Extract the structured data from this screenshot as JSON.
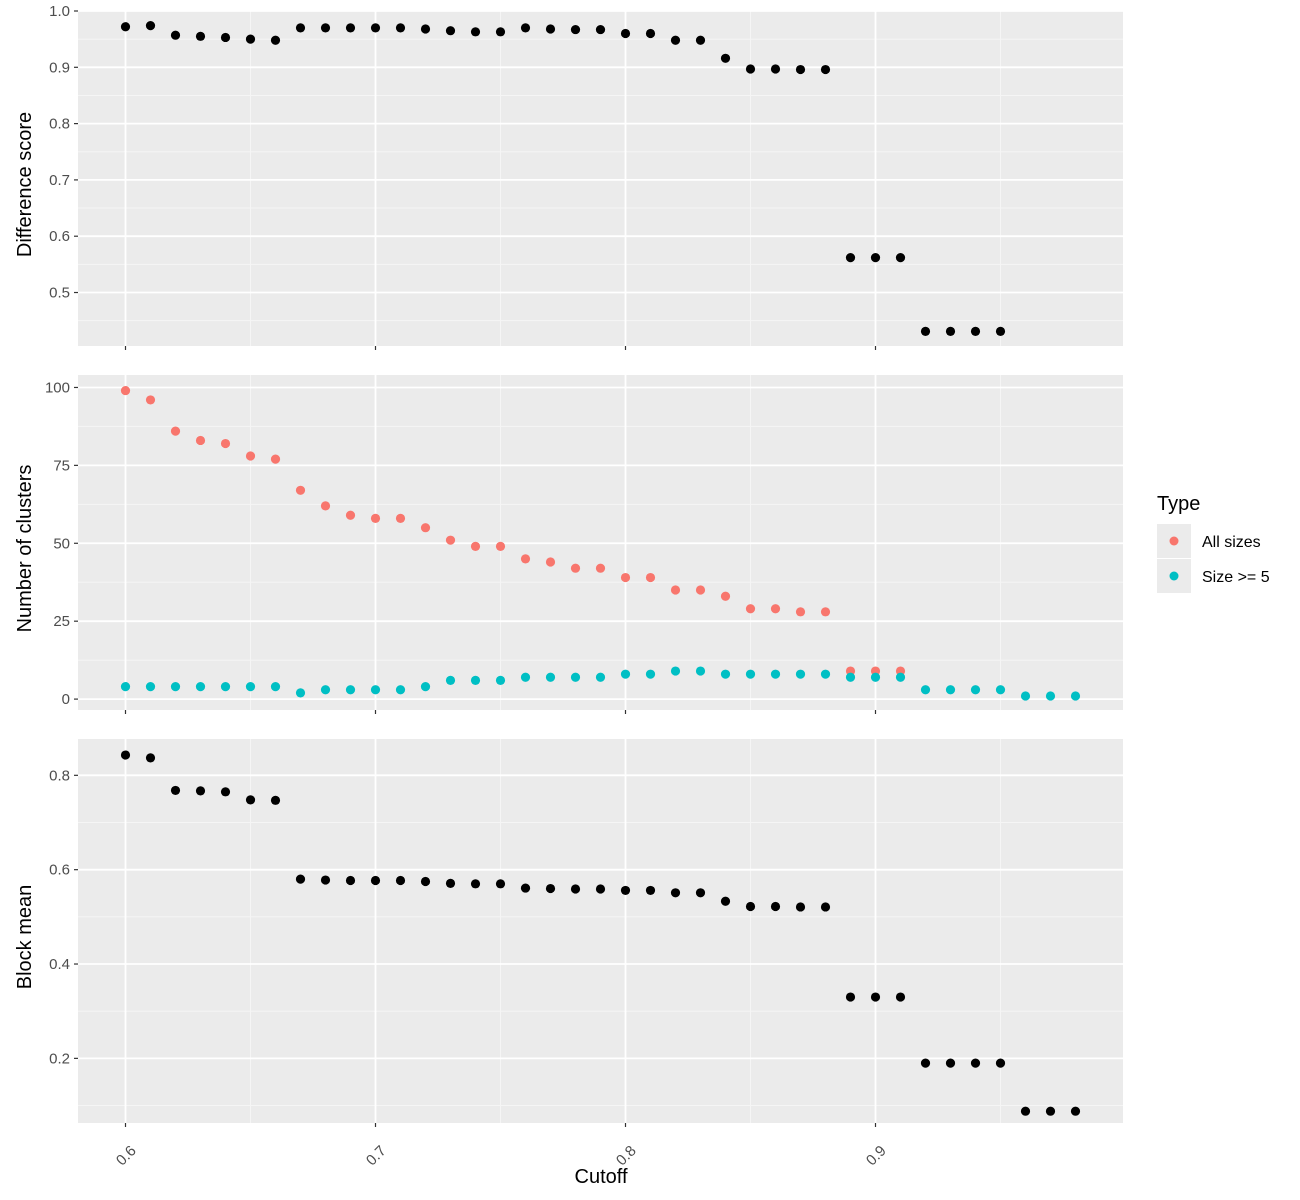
{
  "colors": {
    "panel_bg": "#ebebeb",
    "grid_major": "#ffffff",
    "grid_minor": "#f5f5f5",
    "tick_text": "#4d4d4d",
    "tick_mark": "#333333",
    "point_default": "#000000",
    "all_sizes": "#f8766d",
    "size_ge_5": "#00bfc4"
  },
  "chart_data": {
    "type": "scatter",
    "layout": "three vertically stacked panels sharing the x axis",
    "x_axis": {
      "label": "Cutoff",
      "ticks": [
        0.6,
        0.7,
        0.8,
        0.9
      ],
      "tick_labels": [
        "0.6",
        "0.7",
        "0.8",
        "0.9"
      ],
      "tick_label_rotation": "45 degrees",
      "range": [
        0.581,
        0.999
      ]
    },
    "legend": {
      "title": "Type",
      "position": "right",
      "entries": [
        {
          "label": "All sizes",
          "color": "#f8766d"
        },
        {
          "label": "Size >= 5",
          "color": "#00bfc4"
        }
      ]
    },
    "panels": [
      {
        "ylabel": "Difference score",
        "ylim": [
          0.405,
          1.0
        ],
        "yticks": [
          0.5,
          0.6,
          0.7,
          0.8,
          0.9,
          1.0
        ],
        "ytick_labels": [
          "0.5",
          "0.6",
          "0.7",
          "0.8",
          "0.9",
          "1.0"
        ],
        "series": [
          {
            "color": "#000000",
            "x": [
              0.6,
              0.61,
              0.62,
              0.63,
              0.64,
              0.65,
              0.66,
              0.67,
              0.68,
              0.69,
              0.7,
              0.71,
              0.72,
              0.73,
              0.74,
              0.75,
              0.76,
              0.77,
              0.78,
              0.79,
              0.8,
              0.81,
              0.82,
              0.83,
              0.84,
              0.85,
              0.86,
              0.87,
              0.88,
              0.89,
              0.9,
              0.91,
              0.92,
              0.93,
              0.94,
              0.95
            ],
            "y": [
              0.972,
              0.974,
              0.957,
              0.955,
              0.953,
              0.95,
              0.948,
              0.97,
              0.97,
              0.97,
              0.97,
              0.97,
              0.968,
              0.965,
              0.963,
              0.963,
              0.97,
              0.968,
              0.967,
              0.967,
              0.96,
              0.96,
              0.948,
              0.948,
              0.916,
              0.897,
              0.897,
              0.896,
              0.896,
              0.562,
              0.562,
              0.562,
              0.431,
              0.431,
              0.431,
              0.431
            ]
          }
        ]
      },
      {
        "ylabel": "Number of clusters",
        "ylim": [
          -3.5,
          104
        ],
        "yticks": [
          0,
          25,
          50,
          75,
          100
        ],
        "ytick_labels": [
          "0",
          "25",
          "50",
          "75",
          "100"
        ],
        "series": [
          {
            "name": "All sizes",
            "color": "#f8766d",
            "x": [
              0.6,
              0.61,
              0.62,
              0.63,
              0.64,
              0.65,
              0.66,
              0.67,
              0.68,
              0.69,
              0.7,
              0.71,
              0.72,
              0.73,
              0.74,
              0.75,
              0.76,
              0.77,
              0.78,
              0.79,
              0.8,
              0.81,
              0.82,
              0.83,
              0.84,
              0.85,
              0.86,
              0.87,
              0.88,
              0.89,
              0.9,
              0.91
            ],
            "y": [
              99,
              96,
              86,
              83,
              82,
              78,
              77,
              67,
              62,
              59,
              58,
              58,
              55,
              51,
              49,
              49,
              45,
              44,
              42,
              42,
              39,
              39,
              35,
              35,
              33,
              29,
              29,
              28,
              28,
              9,
              9,
              9
            ]
          },
          {
            "name": "Size >= 5",
            "color": "#00bfc4",
            "x": [
              0.6,
              0.61,
              0.62,
              0.63,
              0.64,
              0.65,
              0.66,
              0.67,
              0.68,
              0.69,
              0.7,
              0.71,
              0.72,
              0.73,
              0.74,
              0.75,
              0.76,
              0.77,
              0.78,
              0.79,
              0.8,
              0.81,
              0.82,
              0.83,
              0.84,
              0.85,
              0.86,
              0.87,
              0.88,
              0.89,
              0.9,
              0.91,
              0.92,
              0.93,
              0.94,
              0.95,
              0.96,
              0.97,
              0.98
            ],
            "y": [
              4,
              4,
              4,
              4,
              4,
              4,
              4,
              2,
              3,
              3,
              3,
              3,
              4,
              6,
              6,
              6,
              7,
              7,
              7,
              7,
              8,
              8,
              9,
              9,
              8,
              8,
              8,
              8,
              8,
              7,
              7,
              7,
              3,
              3,
              3,
              3,
              1,
              1,
              1
            ]
          }
        ]
      },
      {
        "ylabel": "Block mean",
        "ylim": [
          0.063,
          0.877
        ],
        "yticks": [
          0.2,
          0.4,
          0.6,
          0.8
        ],
        "ytick_labels": [
          "0.2",
          "0.4",
          "0.6",
          "0.8"
        ],
        "series": [
          {
            "color": "#000000",
            "x": [
              0.6,
              0.61,
              0.62,
              0.63,
              0.64,
              0.65,
              0.66,
              0.67,
              0.68,
              0.69,
              0.7,
              0.71,
              0.72,
              0.73,
              0.74,
              0.75,
              0.76,
              0.77,
              0.78,
              0.79,
              0.8,
              0.81,
              0.82,
              0.83,
              0.84,
              0.85,
              0.86,
              0.87,
              0.88,
              0.89,
              0.9,
              0.91,
              0.92,
              0.93,
              0.94,
              0.95,
              0.96,
              0.97,
              0.98
            ],
            "y": [
              0.843,
              0.837,
              0.768,
              0.767,
              0.765,
              0.748,
              0.747,
              0.58,
              0.578,
              0.577,
              0.577,
              0.577,
              0.575,
              0.571,
              0.57,
              0.57,
              0.561,
              0.56,
              0.559,
              0.559,
              0.556,
              0.556,
              0.551,
              0.551,
              0.533,
              0.522,
              0.522,
              0.521,
              0.521,
              0.33,
              0.33,
              0.33,
              0.19,
              0.19,
              0.19,
              0.19,
              0.088,
              0.088,
              0.088
            ]
          }
        ]
      }
    ]
  }
}
